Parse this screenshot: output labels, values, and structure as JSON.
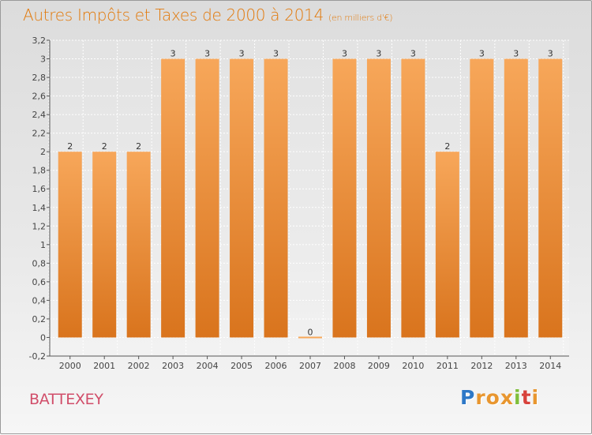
{
  "header": {
    "title": "Autres Impôts et Taxes de 2000 à 2014",
    "subtitle": "(en milliers d'€)"
  },
  "footer": {
    "place": "BATTEXEY",
    "logo": [
      "P",
      "r",
      "o",
      "x",
      "i",
      "t",
      "i"
    ]
  },
  "colors": {
    "title": "#e2790a",
    "bar_light": "#f7a75a",
    "bar_dark": "#d9741d",
    "place": "#d14e6a",
    "logo": [
      "#2e78c7",
      "#e8962f",
      "#e8962f",
      "#e8962f",
      "#7fbf3b",
      "#d8423c",
      "#e8962f"
    ]
  },
  "chart_data": {
    "type": "bar",
    "categories": [
      "2000",
      "2001",
      "2002",
      "2003",
      "2004",
      "2005",
      "2006",
      "2007",
      "2008",
      "2009",
      "2010",
      "2011",
      "2012",
      "2013",
      "2014"
    ],
    "values": [
      2,
      2,
      2,
      3,
      3,
      3,
      3,
      0,
      3,
      3,
      3,
      2,
      3,
      3,
      3
    ],
    "value_labels": [
      "2",
      "2",
      "2",
      "3",
      "3",
      "3",
      "3",
      "0",
      "3",
      "3",
      "3",
      "2",
      "3",
      "3",
      "3"
    ],
    "ylim": [
      -0.2,
      3.2
    ],
    "yticks": [
      "-0,2",
      "0",
      "0,2",
      "0,4",
      "0,6",
      "0,8",
      "1",
      "1,2",
      "1,4",
      "1,6",
      "1,8",
      "2",
      "2,2",
      "2,4",
      "2,6",
      "2,8",
      "3",
      "3,2"
    ],
    "grid": true
  }
}
